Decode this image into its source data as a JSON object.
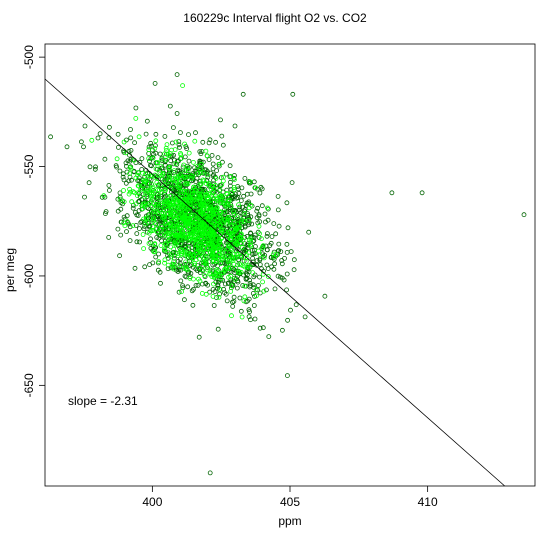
{
  "chart_data": {
    "type": "scatter",
    "title": "160229c   Interval flight O2 vs. CO2",
    "xlabel": "ppm",
    "ylabel": "per meg",
    "xlim": [
      396.1,
      413.9
    ],
    "ylim": [
      -696,
      -494
    ],
    "xticks": [
      400,
      405,
      410
    ],
    "yticks": [
      -500,
      -550,
      -600,
      -650
    ],
    "grid": false,
    "annotation": "slope =  -2.31",
    "fit_line": {
      "slope": -2.31,
      "points": [
        [
          396.1,
          -510
        ],
        [
          412.8,
          -696
        ]
      ]
    },
    "series": [
      {
        "color": "#006400",
        "marker": "open-circle",
        "cluster": {
          "n": 1500,
          "center": [
            401.7,
            -575
          ],
          "spread": [
            1.35,
            17
          ],
          "rho": -0.45
        },
        "points": [
          [
            408.7,
            -562
          ],
          [
            409.8,
            -562
          ],
          [
            413.5,
            -572
          ],
          [
            405.1,
            -517
          ],
          [
            401.7,
            -628
          ],
          [
            402.1,
            -690
          ],
          [
            400.9,
            -508
          ],
          [
            400.1,
            -512
          ],
          [
            403.3,
            -517
          ],
          [
            398.1,
            -535
          ],
          [
            397.5,
            -541
          ],
          [
            396.9,
            -541
          ]
        ]
      },
      {
        "color": "#00ff00",
        "marker": "open-circle",
        "cluster": {
          "n": 1000,
          "center": [
            401.6,
            -575
          ],
          "spread": [
            1.05,
            14
          ],
          "rho": -0.45
        },
        "points": [
          [
            401.1,
            -513
          ],
          [
            399.4,
            -528
          ],
          [
            397.8,
            -538
          ]
        ]
      }
    ]
  }
}
